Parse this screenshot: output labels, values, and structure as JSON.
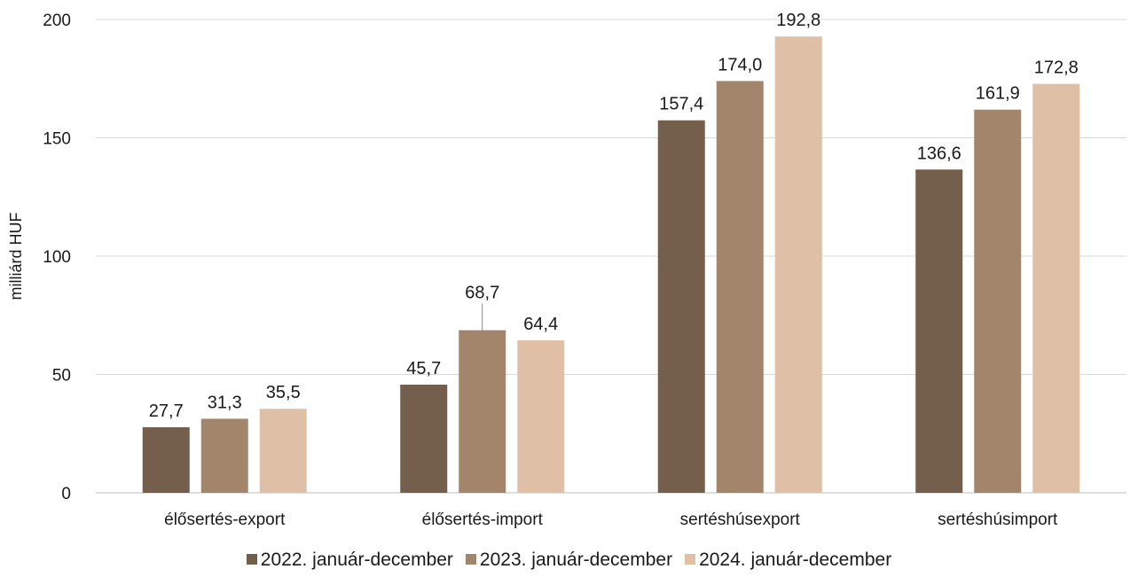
{
  "chart_data": {
    "type": "bar",
    "categories": [
      "élősertés-export",
      "élősertés-import",
      "sertéshúsexport",
      "sertéshúsimport"
    ],
    "series": [
      {
        "name": "2022. január-december",
        "color": "#735f4b",
        "values": [
          27.7,
          45.7,
          157.4,
          136.6
        ],
        "labels": [
          "27,7",
          "45,7",
          "157,4",
          "136,6"
        ]
      },
      {
        "name": "2023. január-december",
        "color": "#a3856c",
        "values": [
          31.3,
          68.7,
          174.0,
          161.9
        ],
        "labels": [
          "31,3",
          "68,7",
          "174,0",
          "161,9"
        ]
      },
      {
        "name": "2024. január-december",
        "color": "#dfbfa6",
        "values": [
          35.5,
          64.4,
          192.8,
          172.8
        ],
        "labels": [
          "35,5",
          "64,4",
          "192,8",
          "172,8"
        ]
      }
    ],
    "title": "",
    "xlabel": "",
    "ylabel": "milliárd HUF",
    "ylim": [
      0,
      200
    ],
    "yticks": [
      0,
      50,
      100,
      150,
      200
    ],
    "grid": true,
    "legend_position": "bottom"
  }
}
